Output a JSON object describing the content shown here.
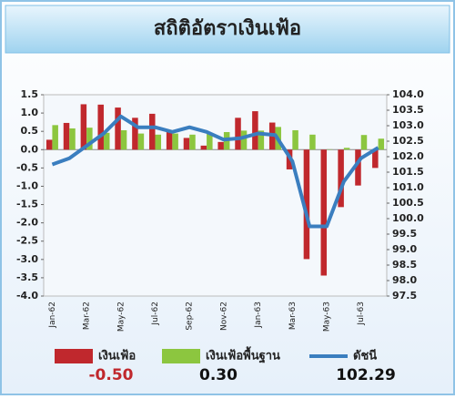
{
  "chart_data": {
    "type": "bar_line",
    "title": "สถิติอัตราเงินเฟ้อ",
    "categories": [
      "Jan-62",
      null,
      "Mar-62",
      null,
      "May-62",
      null,
      "Jul-62",
      null,
      "Sep-62",
      null,
      "Nov-62",
      null,
      "Jan-63",
      null,
      "Mar-63",
      null,
      "May-63",
      null,
      "Jul-63",
      null
    ],
    "series": [
      {
        "name": "เงินเฟ้อ",
        "type": "bar",
        "color": "#c0282d",
        "latest": "-0.50",
        "values": [
          0.27,
          0.73,
          1.24,
          1.23,
          1.15,
          0.87,
          0.98,
          0.52,
          0.32,
          0.11,
          0.21,
          0.87,
          1.05,
          0.74,
          -0.54,
          -2.99,
          -3.44,
          -1.57,
          -0.98,
          -0.5
        ]
      },
      {
        "name": "เงินเฟ้อพื้นฐาน",
        "type": "bar",
        "color": "#8cc63f",
        "latest": "0.30",
        "values": [
          0.67,
          0.58,
          0.6,
          0.46,
          0.53,
          0.44,
          0.41,
          0.44,
          0.41,
          0.44,
          0.48,
          0.52,
          0.52,
          0.62,
          0.53,
          0.41,
          0.01,
          0.05,
          0.4,
          0.3
        ]
      },
      {
        "name": "ดัชนี",
        "type": "line",
        "axis": "y2",
        "color": "#3a7ebf",
        "latest": "102.29",
        "values": [
          101.75,
          101.95,
          102.35,
          102.75,
          103.3,
          102.95,
          102.95,
          102.8,
          102.95,
          102.8,
          102.55,
          102.6,
          102.75,
          102.7,
          101.85,
          99.75,
          99.75,
          101.2,
          101.95,
          102.29
        ]
      }
    ],
    "ylim": [
      -4,
      1.5
    ],
    "yticks": [
      1.5,
      {
        "value": 1,
        "label": "1.0"
      },
      0.5,
      {
        "value": 0,
        "label": "0.0"
      },
      -0.5,
      {
        "value": -1,
        "label": "-1.0"
      },
      -1.5,
      {
        "value": -2,
        "label": "-2.0"
      },
      -2.5,
      {
        "value": -3,
        "label": "-3.0"
      },
      -3.5,
      {
        "value": -4,
        "label": "-4.0"
      }
    ],
    "y2lim": [
      97.5,
      104
    ],
    "y2ticks": [
      {
        "value": 104,
        "label": "104.0"
      },
      103.5,
      {
        "value": 103,
        "label": "103.0"
      },
      102.5,
      {
        "value": 102,
        "label": "102.0"
      },
      101.5,
      {
        "value": 101,
        "label": "101.0"
      },
      100.5,
      {
        "value": 100,
        "label": "100.0"
      },
      99.5,
      {
        "value": 99,
        "label": "99.0"
      },
      98.5,
      {
        "value": 98,
        "label": "98.0"
      },
      97.5
    ]
  }
}
